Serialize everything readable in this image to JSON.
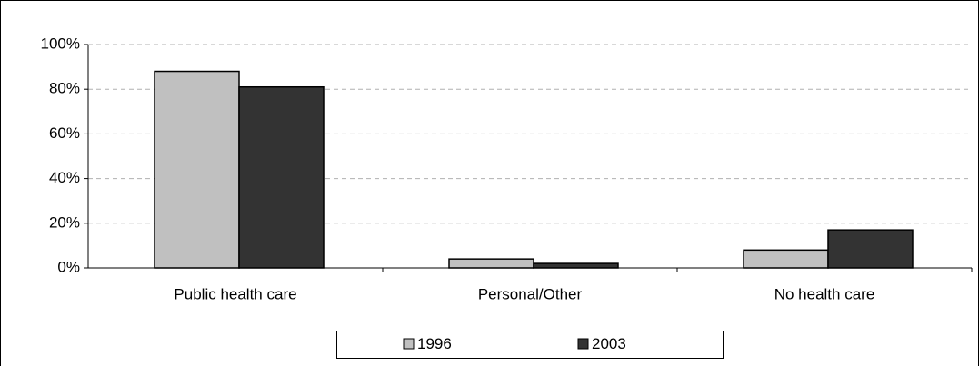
{
  "chart_data": {
    "type": "bar",
    "categories": [
      "Public health care",
      "Personal/Other",
      "No health care"
    ],
    "series": [
      {
        "name": "1996",
        "color": "#c0c0c0",
        "values": [
          88,
          4,
          8
        ]
      },
      {
        "name": "2003",
        "color": "#333333",
        "values": [
          81,
          2,
          17
        ]
      }
    ],
    "ylim": [
      0,
      100
    ],
    "yticks": [
      {
        "value": 0,
        "label": "0%"
      },
      {
        "value": 20,
        "label": "20%"
      },
      {
        "value": 40,
        "label": "40%"
      },
      {
        "value": 60,
        "label": "60%"
      },
      {
        "value": 80,
        "label": "80%"
      },
      {
        "value": 100,
        "label": "100%"
      }
    ],
    "grid": true,
    "legend": "bottom"
  }
}
